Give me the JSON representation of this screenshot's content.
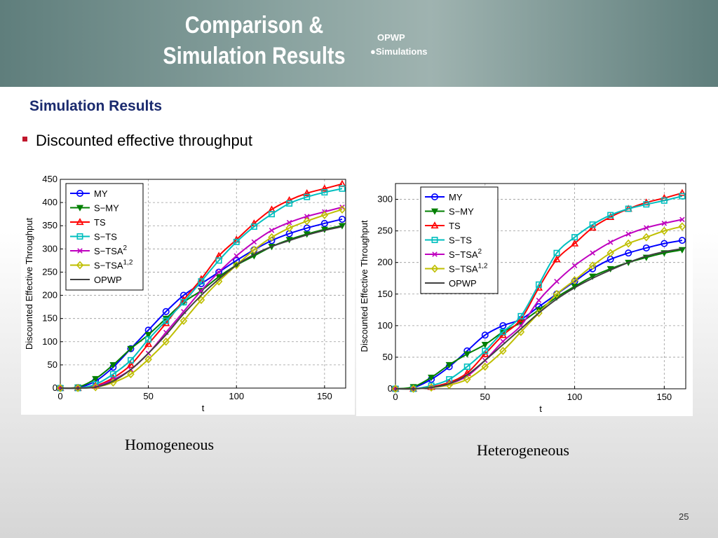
{
  "header": {
    "title_line1": "Comparison &",
    "title_line2": "Simulation Results",
    "nav_item1": "OPWP",
    "nav_item2": "●Simulations"
  },
  "section_title": "Simulation Results",
  "bullet_text": "Discounted effective throughput",
  "page_number": "25",
  "legend": [
    {
      "label": "MY",
      "sup": "",
      "color": "#0000ff",
      "marker": "circle"
    },
    {
      "label": "S−MY",
      "sup": "",
      "color": "#007f00",
      "marker": "triangle-down"
    },
    {
      "label": "TS",
      "sup": "",
      "color": "#ff0000",
      "marker": "triangle-up"
    },
    {
      "label": "S−TS",
      "sup": "",
      "color": "#00bfbf",
      "marker": "square"
    },
    {
      "label": "S−TSA",
      "sup": "2",
      "color": "#bf00bf",
      "marker": "x"
    },
    {
      "label": "S−TSA",
      "sup": "1,2",
      "color": "#bfbf00",
      "marker": "diamond"
    },
    {
      "label": "OPWP",
      "sup": "",
      "color": "#404040",
      "marker": "none"
    }
  ],
  "chart_data": [
    {
      "type": "line",
      "caption": "Homogeneous",
      "xlabel": "t",
      "ylabel": "Discounted Effective Throughput",
      "xlim": [
        0,
        162
      ],
      "ylim": [
        0,
        450
      ],
      "xticks": [
        0,
        50,
        100,
        150
      ],
      "yticks": [
        0,
        50,
        100,
        150,
        200,
        250,
        300,
        350,
        400,
        450
      ],
      "grid": true,
      "legend_position": "top-left",
      "x": [
        0,
        10,
        20,
        30,
        40,
        50,
        60,
        70,
        80,
        90,
        100,
        110,
        120,
        130,
        140,
        150,
        160
      ],
      "series": [
        {
          "name": "MY",
          "values": [
            0,
            1,
            15,
            45,
            85,
            125,
            165,
            200,
            225,
            250,
            275,
            298,
            318,
            333,
            345,
            355,
            364
          ]
        },
        {
          "name": "S−MY",
          "values": [
            0,
            2,
            20,
            50,
            85,
            115,
            150,
            185,
            210,
            240,
            265,
            285,
            305,
            320,
            332,
            342,
            350
          ]
        },
        {
          "name": "TS",
          "values": [
            0,
            0,
            5,
            22,
            50,
            95,
            140,
            190,
            235,
            285,
            320,
            355,
            385,
            405,
            420,
            430,
            440
          ]
        },
        {
          "name": "S−TS",
          "values": [
            0,
            0,
            8,
            30,
            60,
            105,
            145,
            185,
            230,
            275,
            315,
            348,
            375,
            398,
            412,
            422,
            430
          ]
        },
        {
          "name": "S−TSA",
          "values": [
            0,
            0,
            3,
            18,
            40,
            75,
            120,
            165,
            210,
            250,
            285,
            315,
            340,
            357,
            370,
            380,
            390
          ]
        },
        {
          "name": "S−TSA",
          "values": [
            0,
            0,
            2,
            12,
            30,
            62,
            100,
            145,
            190,
            230,
            265,
            298,
            325,
            345,
            360,
            373,
            385
          ]
        },
        {
          "name": "OPWP",
          "values": [
            0,
            0,
            2,
            15,
            40,
            75,
            115,
            160,
            200,
            235,
            265,
            288,
            305,
            318,
            330,
            340,
            348
          ]
        }
      ]
    },
    {
      "type": "line",
      "caption": "Heterogeneous",
      "xlabel": "t",
      "ylabel": "Discounted Effective Throughput",
      "xlim": [
        0,
        162
      ],
      "ylim": [
        0,
        325
      ],
      "xticks": [
        0,
        50,
        100,
        150
      ],
      "yticks": [
        0,
        50,
        100,
        150,
        200,
        250,
        300
      ],
      "grid": true,
      "legend_position": "top-left",
      "x": [
        0,
        10,
        20,
        30,
        40,
        50,
        60,
        70,
        80,
        90,
        100,
        110,
        120,
        130,
        140,
        150,
        160
      ],
      "series": [
        {
          "name": "MY",
          "values": [
            0,
            2,
            15,
            35,
            60,
            85,
            100,
            110,
            130,
            150,
            170,
            190,
            205,
            215,
            223,
            230,
            235
          ]
        },
        {
          "name": "S−MY",
          "values": [
            0,
            3,
            18,
            38,
            55,
            70,
            90,
            105,
            125,
            145,
            162,
            178,
            190,
            200,
            208,
            215,
            220
          ]
        },
        {
          "name": "TS",
          "values": [
            0,
            0,
            3,
            10,
            25,
            55,
            85,
            110,
            160,
            205,
            230,
            255,
            272,
            285,
            295,
            302,
            310
          ]
        },
        {
          "name": "S−TS",
          "values": [
            0,
            0,
            5,
            15,
            35,
            60,
            90,
            115,
            165,
            215,
            240,
            260,
            275,
            285,
            292,
            298,
            305
          ]
        },
        {
          "name": "S−TSA",
          "values": [
            0,
            0,
            2,
            8,
            20,
            45,
            75,
            100,
            140,
            170,
            195,
            215,
            232,
            245,
            255,
            262,
            268
          ]
        },
        {
          "name": "S−TSA",
          "values": [
            0,
            0,
            2,
            6,
            15,
            35,
            60,
            90,
            120,
            150,
            172,
            195,
            215,
            230,
            240,
            250,
            257
          ]
        },
        {
          "name": "OPWP",
          "values": [
            0,
            0,
            2,
            8,
            22,
            45,
            70,
            95,
            120,
            142,
            160,
            175,
            188,
            200,
            210,
            217,
            222
          ]
        }
      ]
    }
  ]
}
